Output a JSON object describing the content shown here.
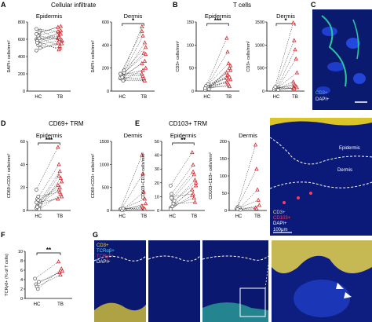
{
  "panel_letters": {
    "A": "A",
    "B": "B",
    "C": "C",
    "D": "D",
    "E": "E",
    "F": "F",
    "G": "G"
  },
  "titles": {
    "A": "Cellular infiltrate",
    "B": "T cells",
    "D": "CD69+ TRM",
    "E": "CD103+ TRM"
  },
  "micro": {
    "C_labels": [
      "CD3+",
      "DAPI+"
    ],
    "C_colors": [
      "#2bd3a0",
      "#ffffff"
    ],
    "E_top": "Epidermis",
    "E_bottom": "Dermis",
    "E_legend": [
      "CD3+",
      "CD103+",
      "DAPI+",
      "100μm"
    ],
    "E_colors": [
      "#f5e04a",
      "#ff3b5c",
      "#ffffff",
      "#ffffff"
    ],
    "G_legend": [
      "CD3+",
      "TCRαβ+",
      "TCRγδ+",
      "DAPI+"
    ],
    "G_colors": [
      "#f5e04a",
      "#5ad1ff",
      "#ff3b5c",
      "#ffffff"
    ]
  },
  "chart_data": [
    {
      "type": "scatter",
      "panel": "A",
      "subtitle": "Epidermis",
      "ylabel": "DAPI+ cells/mm²",
      "ylim": [
        0,
        800
      ],
      "yticks": [
        0,
        200,
        400,
        600,
        800
      ],
      "categories": [
        "HC",
        "TB"
      ],
      "significance": "",
      "pairs": [
        [
          600,
          610
        ],
        [
          560,
          680
        ],
        [
          530,
          500
        ],
        [
          650,
          700
        ],
        [
          700,
          580
        ],
        [
          470,
          560
        ],
        [
          590,
          640
        ],
        [
          620,
          520
        ],
        [
          680,
          750
        ],
        [
          540,
          590
        ],
        [
          720,
          690
        ],
        [
          580,
          480
        ],
        [
          640,
          600
        ],
        [
          610,
          660
        ],
        [
          500,
          550
        ],
        [
          660,
          740
        ],
        [
          560,
          620
        ]
      ]
    },
    {
      "type": "scatter",
      "panel": "A",
      "subtitle": "Dermis",
      "ylabel": "DAPI+ cells/mm²",
      "ylim": [
        0,
        600
      ],
      "yticks": [
        0,
        200,
        400,
        600
      ],
      "categories": [
        "HC",
        "TB"
      ],
      "significance": "*",
      "pairs": [
        [
          110,
          560
        ],
        [
          120,
          480
        ],
        [
          140,
          330
        ],
        [
          125,
          260
        ],
        [
          100,
          200
        ],
        [
          150,
          150
        ],
        [
          135,
          130
        ],
        [
          105,
          100
        ],
        [
          130,
          420
        ],
        [
          160,
          320
        ],
        [
          115,
          240
        ],
        [
          140,
          180
        ],
        [
          120,
          110
        ],
        [
          90,
          90
        ],
        [
          180,
          380
        ],
        [
          150,
          520
        ]
      ]
    },
    {
      "type": "scatter",
      "panel": "B",
      "subtitle": "Epidermis",
      "ylabel": "CD3+ cells/mm²",
      "ylim": [
        0,
        150
      ],
      "yticks": [
        0,
        50,
        100,
        150
      ],
      "categories": [
        "HC",
        "TB"
      ],
      "significance": "***",
      "pairs": [
        [
          5,
          115
        ],
        [
          8,
          85
        ],
        [
          12,
          60
        ],
        [
          4,
          50
        ],
        [
          10,
          45
        ],
        [
          6,
          40
        ],
        [
          3,
          35
        ],
        [
          9,
          32
        ],
        [
          15,
          30
        ],
        [
          7,
          25
        ],
        [
          2,
          20
        ],
        [
          11,
          18
        ],
        [
          5,
          14
        ],
        [
          8,
          10
        ],
        [
          4,
          55
        ],
        [
          6,
          28
        ]
      ]
    },
    {
      "type": "scatter",
      "panel": "B",
      "subtitle": "Dermis",
      "ylabel": "CD3+ cells/mm²",
      "ylim": [
        0,
        1500
      ],
      "yticks": [
        0,
        500,
        1000,
        1500
      ],
      "categories": [
        "HC",
        "TB"
      ],
      "significance": "*",
      "pairs": [
        [
          40,
          1480
        ],
        [
          60,
          1100
        ],
        [
          30,
          900
        ],
        [
          50,
          700
        ],
        [
          80,
          400
        ],
        [
          20,
          200
        ],
        [
          45,
          150
        ],
        [
          70,
          120
        ],
        [
          35,
          100
        ],
        [
          25,
          80
        ],
        [
          55,
          60
        ],
        [
          90,
          50
        ]
      ]
    },
    {
      "type": "scatter",
      "panel": "D",
      "subtitle": "Epidermis",
      "ylabel": "CD69+CD3+ cells/mm²",
      "ylim": [
        0,
        60
      ],
      "yticks": [
        0,
        20,
        40,
        60
      ],
      "categories": [
        "HC",
        "TB"
      ],
      "significance": "***",
      "pairs": [
        [
          18,
          55
        ],
        [
          10,
          40
        ],
        [
          6,
          34
        ],
        [
          3,
          28
        ],
        [
          8,
          25
        ],
        [
          2,
          22
        ],
        [
          4,
          18
        ],
        [
          12,
          16
        ],
        [
          1,
          14
        ],
        [
          5,
          12
        ],
        [
          7,
          10
        ],
        [
          3,
          30
        ],
        [
          9,
          20
        ]
      ]
    },
    {
      "type": "scatter",
      "panel": "D",
      "subtitle": "Dermis",
      "ylabel": "CD69+CD3+ cells/mm²",
      "ylim": [
        0,
        1500
      ],
      "yticks": [
        0,
        500,
        1000,
        1500
      ],
      "categories": [
        "HC",
        "TB"
      ],
      "significance": "",
      "pairs": [
        [
          20,
          1200
        ],
        [
          30,
          800
        ],
        [
          10,
          400
        ],
        [
          40,
          250
        ],
        [
          15,
          150
        ],
        [
          25,
          100
        ],
        [
          35,
          60
        ],
        [
          5,
          40
        ],
        [
          45,
          30
        ]
      ]
    },
    {
      "type": "scatter",
      "panel": "E",
      "subtitle": "Epidermis",
      "ylabel": "CD103+CD3+ cells/mm²",
      "ylim": [
        0,
        50
      ],
      "yticks": [
        0,
        10,
        20,
        30,
        40,
        50
      ],
      "categories": [
        "HC",
        "TB"
      ],
      "significance": "**",
      "pairs": [
        [
          18,
          42
        ],
        [
          12,
          33
        ],
        [
          8,
          26
        ],
        [
          6,
          22
        ],
        [
          4,
          18
        ],
        [
          2,
          15
        ],
        [
          10,
          12
        ],
        [
          3,
          9
        ],
        [
          5,
          6
        ],
        [
          7,
          20
        ],
        [
          1,
          11
        ],
        [
          9,
          28
        ]
      ]
    },
    {
      "type": "scatter",
      "panel": "E",
      "subtitle": "Dermis",
      "ylabel": "CD103+CD3+ cells/mm²",
      "ylim": [
        0,
        200
      ],
      "yticks": [
        0,
        50,
        100,
        150,
        200
      ],
      "categories": [
        "HC",
        "TB"
      ],
      "significance": "",
      "pairs": [
        [
          5,
          190
        ],
        [
          10,
          120
        ],
        [
          3,
          60
        ],
        [
          8,
          30
        ],
        [
          2,
          15
        ],
        [
          6,
          8
        ],
        [
          4,
          5
        ]
      ]
    },
    {
      "type": "scatter",
      "panel": "F",
      "subtitle": "",
      "ylabel": "TCRγδ+ (% of T cells)",
      "ylim": [
        0,
        10
      ],
      "yticks": [
        0,
        2,
        4,
        6,
        8,
        10
      ],
      "categories": [
        "HC",
        "TB"
      ],
      "significance": "**",
      "pairs": [
        [
          4.2,
          7.8
        ],
        [
          3,
          5.5
        ],
        [
          2.5,
          5
        ],
        [
          2,
          6.3
        ],
        [
          3.5,
          5.8
        ]
      ]
    }
  ]
}
